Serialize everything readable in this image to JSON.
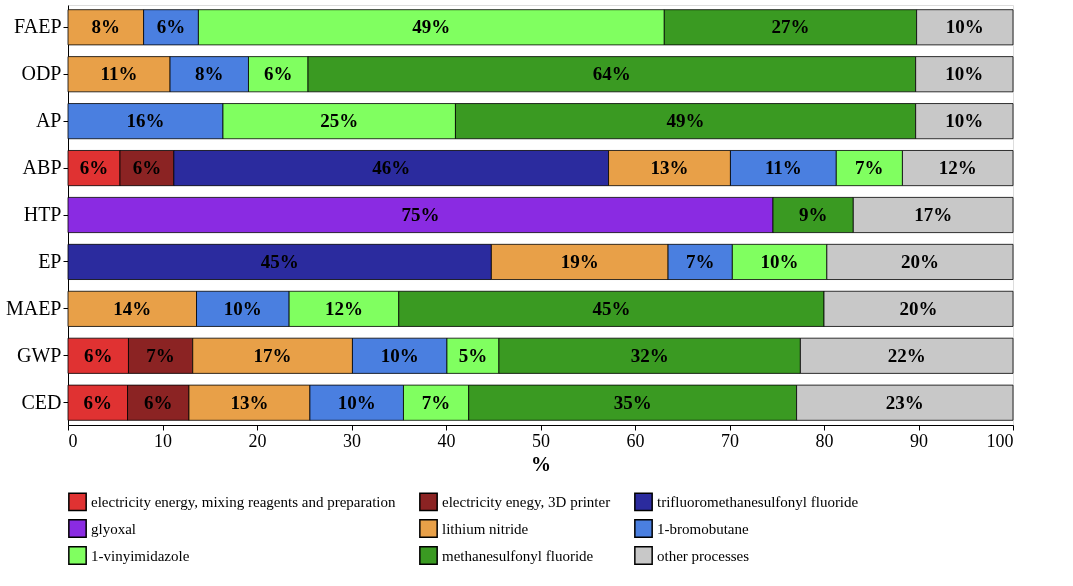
{
  "chart_data": {
    "type": "bar",
    "orientation": "horizontal",
    "stacked": true,
    "xlabel": "%",
    "legend": "bottom",
    "categories": [
      "FAEP",
      "ODP",
      "AP",
      "ABP",
      "HTP",
      "EP",
      "MAEP",
      "GWP",
      "CED"
    ],
    "xlim": [
      0,
      100
    ],
    "xticks": [
      0,
      10,
      20,
      30,
      40,
      50,
      60,
      70,
      80,
      90,
      100
    ],
    "series": [
      {
        "name": "electricity energy, mixing reagents and preparation",
        "color": "#e03232",
        "values": [
          null,
          null,
          null,
          5.5,
          null,
          null,
          null,
          6.4,
          6.3
        ],
        "value_labels": [
          null,
          null,
          null,
          "6%",
          null,
          null,
          null,
          "6%",
          "6%"
        ]
      },
      {
        "name": "electricity enegy, 3D printer",
        "color": "#8b2323",
        "values": [
          null,
          null,
          null,
          5.7,
          null,
          null,
          null,
          6.8,
          6.5
        ],
        "value_labels": [
          null,
          null,
          null,
          "6%",
          null,
          null,
          null,
          "7%",
          "6%"
        ]
      },
      {
        "name": "trifluoromethanesulfonyl fluoride",
        "color": "#2b2b9e",
        "values": [
          null,
          null,
          null,
          46.0,
          null,
          44.8,
          null,
          null,
          null
        ],
        "value_labels": [
          null,
          null,
          null,
          "46%",
          null,
          "45%",
          null,
          null,
          null
        ]
      },
      {
        "name": "glyoxal",
        "color": "#8a2be2",
        "values": [
          null,
          null,
          null,
          null,
          74.6,
          null,
          null,
          null,
          null
        ],
        "value_labels": [
          null,
          null,
          null,
          null,
          "75%",
          null,
          null,
          null,
          null
        ]
      },
      {
        "name": "lithium nitride",
        "color": "#e8a048",
        "values": [
          8.0,
          10.8,
          null,
          12.9,
          null,
          18.7,
          13.6,
          16.9,
          12.8
        ],
        "value_labels": [
          "8%",
          "11%",
          null,
          "13%",
          null,
          "19%",
          "14%",
          "17%",
          "13%"
        ]
      },
      {
        "name": "1-bromobutane",
        "color": "#4a7fe0",
        "values": [
          5.8,
          8.3,
          16.4,
          11.2,
          null,
          6.8,
          9.8,
          10.0,
          9.9
        ],
        "value_labels": [
          "6%",
          "8%",
          "16%",
          "11%",
          null,
          "7%",
          "10%",
          "10%",
          "10%"
        ]
      },
      {
        "name": "1-vinyimidazole",
        "color": "#80ff60",
        "values": [
          49.3,
          6.3,
          24.6,
          7.0,
          null,
          10.0,
          11.6,
          5.5,
          6.9
        ],
        "value_labels": [
          "49%",
          "6%",
          "25%",
          "7%",
          null,
          "10%",
          "12%",
          "5%",
          "7%"
        ]
      },
      {
        "name": "methanesulfonyl fluoride",
        "color": "#3a9a22",
        "values": [
          26.7,
          64.3,
          48.7,
          null,
          8.5,
          null,
          45.0,
          31.9,
          34.7
        ],
        "value_labels": [
          "27%",
          "64%",
          "49%",
          null,
          "9%",
          null,
          "45%",
          "32%",
          "35%"
        ]
      },
      {
        "name": "other processes",
        "color": "#c8c8c8",
        "values": [
          10.2,
          10.3,
          10.3,
          11.7,
          16.9,
          19.7,
          20.0,
          22.5,
          22.9
        ],
        "value_labels": [
          "10%",
          "10%",
          "10%",
          "12%",
          "17%",
          "20%",
          "20%",
          "22%",
          "23%"
        ]
      }
    ]
  }
}
